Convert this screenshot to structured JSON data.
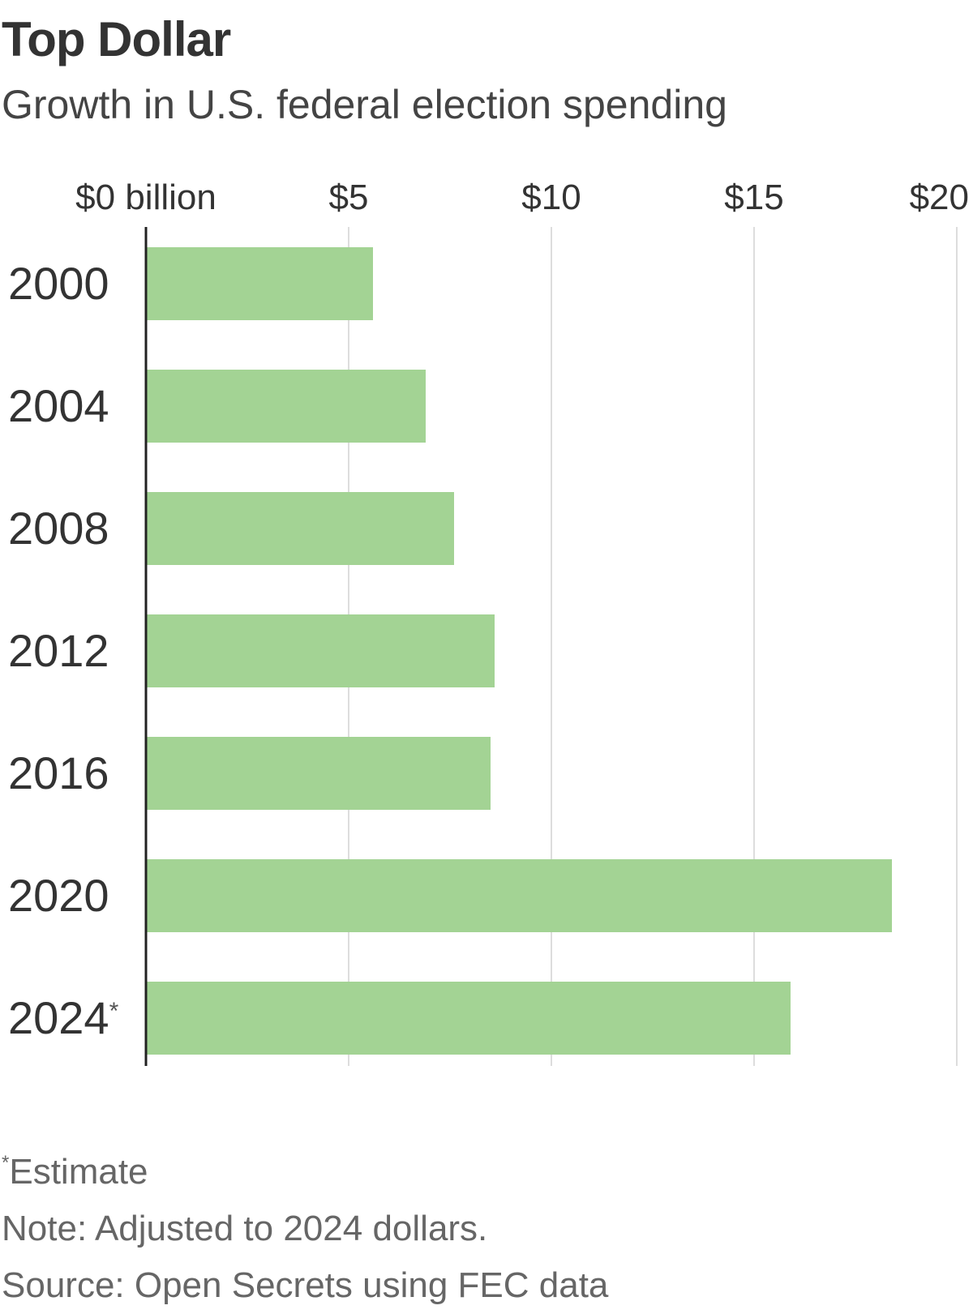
{
  "chart_data": {
    "type": "bar",
    "orientation": "horizontal",
    "title": "Top Dollar",
    "subtitle": "Growth in U.S. federal election spending",
    "categories": [
      "2000",
      "2004",
      "2008",
      "2012",
      "2016",
      "2020",
      "2024"
    ],
    "category_markers": [
      "",
      "",
      "",
      "",
      "",
      "",
      "*"
    ],
    "values": [
      5.6,
      6.9,
      7.6,
      8.6,
      8.5,
      18.4,
      15.9
    ],
    "xlim": [
      0,
      20
    ],
    "ticks": [
      0,
      5,
      10,
      15,
      20
    ],
    "tick_labels": [
      "$0 billion",
      "$5",
      "$10",
      "$15",
      "$20"
    ],
    "grid": true,
    "bar_color": "#a3d394",
    "gridline_color": "#dddddd",
    "axis_color": "#222222"
  },
  "footnotes": {
    "estimate_marker": "*",
    "estimate": "Estimate",
    "note": "Note: Adjusted to 2024 dollars.",
    "source": "Source: Open Secrets using FEC data"
  }
}
